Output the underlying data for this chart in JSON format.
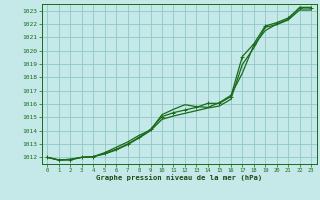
{
  "title": "Graphe pression niveau de la mer (hPa)",
  "background_color": "#c5e8e8",
  "plot_bg_color": "#c5e8e8",
  "line_color": "#1a6b1a",
  "grid_color": "#8fc8c8",
  "text_color": "#1a6b1a",
  "xlabel_color": "#1a4a1a",
  "xlim": [
    -0.5,
    23.5
  ],
  "ylim": [
    1011.5,
    1023.5
  ],
  "yticks": [
    1012,
    1013,
    1014,
    1015,
    1016,
    1017,
    1018,
    1019,
    1020,
    1021,
    1022,
    1023
  ],
  "xticks": [
    0,
    1,
    2,
    3,
    4,
    5,
    6,
    7,
    8,
    9,
    10,
    11,
    12,
    13,
    14,
    15,
    16,
    17,
    18,
    19,
    20,
    21,
    22,
    23
  ],
  "series1_x": [
    0,
    1,
    2,
    3,
    4,
    5,
    6,
    7,
    8,
    9,
    10,
    11,
    12,
    13,
    14,
    15,
    16,
    17,
    18,
    19,
    20,
    21,
    22,
    23
  ],
  "series1": [
    1012.0,
    1011.8,
    1011.8,
    1012.0,
    1012.05,
    1012.3,
    1012.6,
    1013.0,
    1013.5,
    1014.1,
    1015.05,
    1015.35,
    1015.55,
    1015.75,
    1016.05,
    1016.05,
    1016.55,
    1019.55,
    1020.5,
    1021.85,
    1022.1,
    1022.45,
    1023.2,
    1023.2
  ],
  "series2_x": [
    0,
    1,
    2,
    3,
    4,
    5,
    6,
    7,
    8,
    9,
    10,
    11,
    12,
    13,
    14,
    15,
    16,
    17,
    18,
    19,
    20,
    21,
    22,
    23
  ],
  "series2": [
    1012.0,
    1011.8,
    1011.85,
    1012.0,
    1012.05,
    1012.35,
    1012.75,
    1013.15,
    1013.65,
    1014.05,
    1015.2,
    1015.6,
    1015.95,
    1015.8,
    1015.75,
    1016.1,
    1016.65,
    1018.3,
    1020.4,
    1021.5,
    1022.0,
    1022.35,
    1023.25,
    1023.25
  ],
  "series3_x": [
    0,
    1,
    2,
    3,
    4,
    5,
    6,
    7,
    8,
    9,
    10,
    11,
    12,
    13,
    14,
    15,
    16,
    17,
    18,
    19,
    20,
    21,
    22,
    23
  ],
  "series3": [
    1012.0,
    1011.8,
    1011.85,
    1012.0,
    1012.05,
    1012.25,
    1012.55,
    1012.95,
    1013.45,
    1014.0,
    1014.85,
    1015.1,
    1015.3,
    1015.5,
    1015.7,
    1015.85,
    1016.35,
    1018.95,
    1020.2,
    1021.75,
    1021.95,
    1022.3,
    1023.05,
    1023.05
  ],
  "marker_x": [
    0,
    1,
    2,
    3,
    4,
    5,
    6,
    7,
    8,
    9,
    10,
    11,
    12,
    13,
    14,
    15,
    16,
    17,
    18,
    19,
    20,
    21,
    22,
    23
  ],
  "marker_y": [
    1012.0,
    1011.8,
    1011.8,
    1012.0,
    1012.05,
    1012.3,
    1012.6,
    1013.0,
    1013.5,
    1014.1,
    1015.05,
    1015.35,
    1015.55,
    1015.75,
    1016.05,
    1016.05,
    1016.55,
    1019.55,
    1020.5,
    1021.85,
    1022.1,
    1022.45,
    1023.2,
    1023.2
  ]
}
